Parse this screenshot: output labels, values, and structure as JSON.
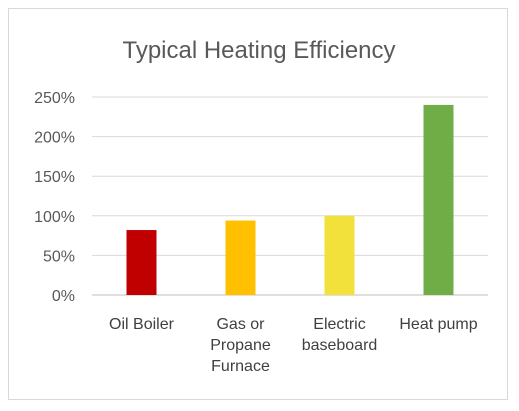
{
  "chart_data": {
    "type": "bar",
    "title": "Typical Heating Efficiency",
    "xlabel": "",
    "ylabel": "",
    "categories": [
      [
        "Oil Boiler"
      ],
      [
        "Gas or",
        "Propane",
        "Furnace"
      ],
      [
        "Electric",
        "baseboard"
      ],
      [
        "Heat pump"
      ]
    ],
    "values": [
      82,
      94,
      100,
      240
    ],
    "colors": [
      "#c00000",
      "#ffc000",
      "#f2e03b",
      "#70ad47"
    ],
    "ylim": [
      0,
      250
    ],
    "yticks": [
      0,
      50,
      100,
      150,
      200,
      250
    ],
    "ytick_labels": [
      "0%",
      "50%",
      "100%",
      "150%",
      "200%",
      "250%"
    ],
    "grid": true,
    "legend": "none"
  }
}
